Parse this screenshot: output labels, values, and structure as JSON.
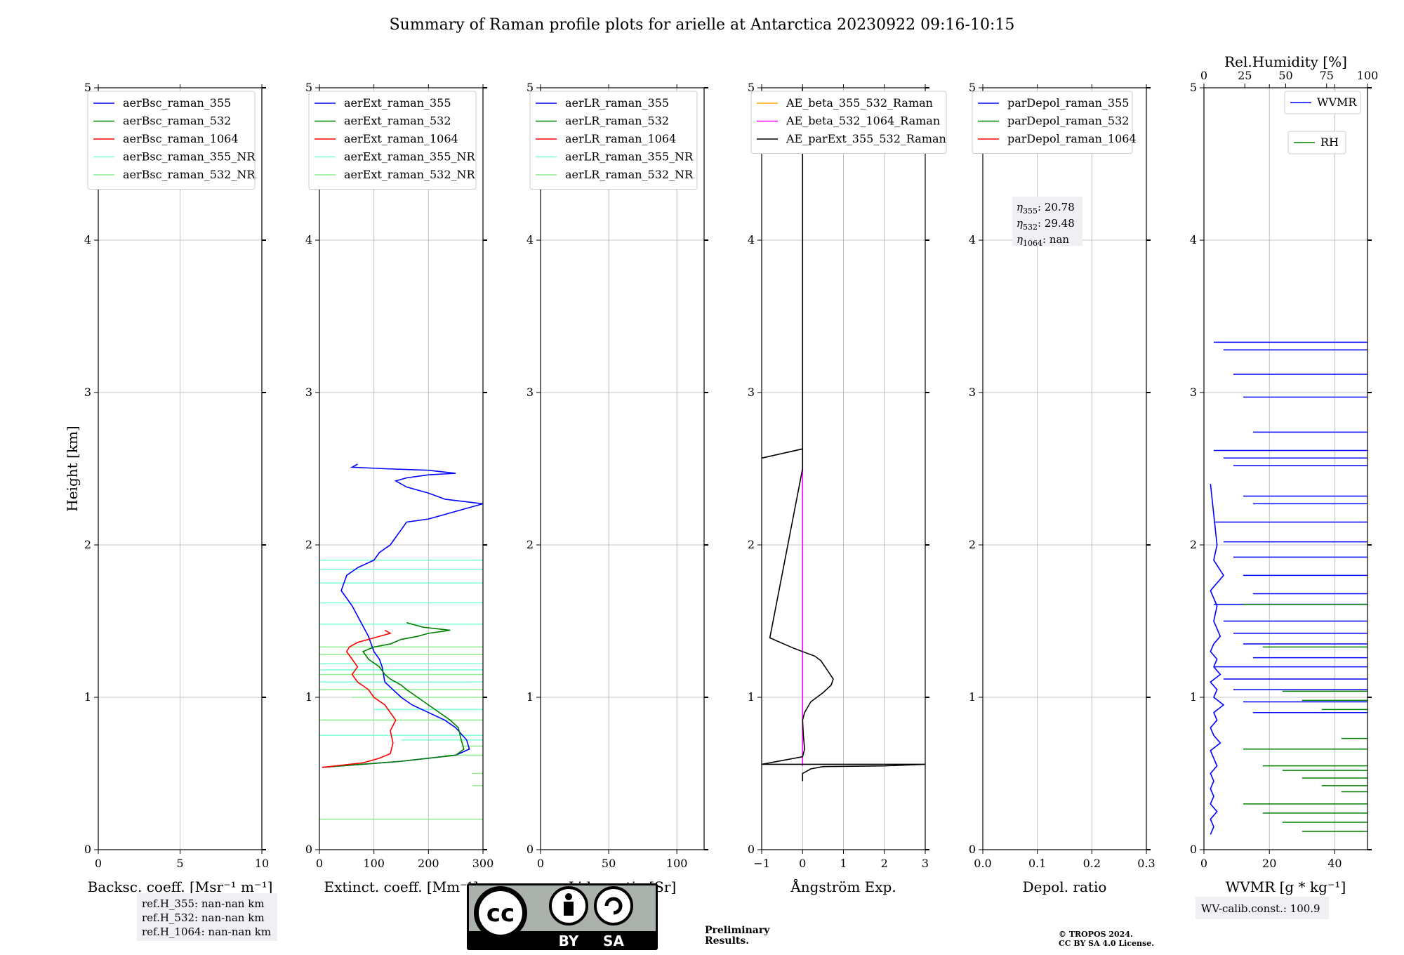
{
  "title": "Summary of Raman profile plots for arielle at Antarctica 20230922 09:16-10:15",
  "chart_data": [
    {
      "type": "line",
      "name": "backscatter",
      "xlabel": "Backsc. coeff. [Msr$^{-1}$ m$^{-1}$]",
      "xlabel_text": "Backsc. coeff. [Msr⁻¹ m⁻¹]",
      "ylabel": "Height [km]",
      "xlim": [
        0,
        10
      ],
      "ylim": [
        0,
        5
      ],
      "xticks": [
        "0",
        "5",
        "10"
      ],
      "yticks": [
        "0",
        "1",
        "2",
        "3",
        "4",
        "5"
      ],
      "legend": [
        {
          "label": "aerBsc_raman_355",
          "color": "#0000ff"
        },
        {
          "label": "aerBsc_raman_532",
          "color": "#008000"
        },
        {
          "label": "aerBsc_raman_1064",
          "color": "#ff0000"
        },
        {
          "label": "aerBsc_raman_355_NR",
          "color": "#7fffd4"
        },
        {
          "label": "aerBsc_raman_532_NR",
          "color": "#90ee90"
        }
      ],
      "series": []
    },
    {
      "type": "line",
      "name": "extinction",
      "xlabel_text": "Extinct. coeff. [Mm⁻¹]",
      "xlim": [
        0,
        300
      ],
      "ylim": [
        0,
        5
      ],
      "xticks": [
        "0",
        "100",
        "200",
        "300"
      ],
      "yticks": [
        "0",
        "1",
        "2",
        "3",
        "4",
        "5"
      ],
      "legend": [
        {
          "label": "aerExt_raman_355",
          "color": "#0000ff"
        },
        {
          "label": "aerExt_raman_532",
          "color": "#008000"
        },
        {
          "label": "aerExt_raman_1064",
          "color": "#ff0000"
        },
        {
          "label": "aerExt_raman_355_NR",
          "color": "#7fffd4"
        },
        {
          "label": "aerExt_raman_532_NR",
          "color": "#90ee90"
        }
      ],
      "series": [
        {
          "name": "aerExt_raman_355",
          "color": "#0000ff",
          "x": [
            5,
            150,
            250,
            275,
            270,
            250,
            230,
            200,
            170,
            150,
            135,
            120,
            115,
            110,
            100,
            90,
            75,
            60,
            40,
            50,
            70,
            100,
            110,
            130,
            140,
            150,
            160,
            200,
            230,
            280,
            300,
            230,
            215,
            200,
            180,
            160,
            150,
            140,
            160,
            200,
            250,
            200,
            120,
            60,
            70
          ],
          "h": [
            0.54,
            0.58,
            0.62,
            0.66,
            0.72,
            0.8,
            0.85,
            0.9,
            0.95,
            1.0,
            1.05,
            1.1,
            1.2,
            1.25,
            1.3,
            1.4,
            1.5,
            1.6,
            1.7,
            1.8,
            1.85,
            1.9,
            1.95,
            2.0,
            2.05,
            2.1,
            2.15,
            2.17,
            2.2,
            2.25,
            2.27,
            2.3,
            2.32,
            2.34,
            2.36,
            2.38,
            2.4,
            2.42,
            2.44,
            2.46,
            2.47,
            2.49,
            2.5,
            2.51,
            2.53
          ]
        },
        {
          "name": "aerExt_raman_532",
          "color": "#008000",
          "x": [
            5,
            150,
            250,
            265,
            260,
            255,
            240,
            220,
            200,
            180,
            160,
            150,
            130,
            120,
            110,
            90,
            80,
            100,
            130,
            150,
            180,
            200,
            240,
            190,
            170,
            160
          ],
          "h": [
            0.54,
            0.58,
            0.62,
            0.66,
            0.72,
            0.8,
            0.85,
            0.9,
            0.95,
            1.0,
            1.05,
            1.08,
            1.12,
            1.15,
            1.2,
            1.25,
            1.3,
            1.33,
            1.35,
            1.38,
            1.4,
            1.42,
            1.44,
            1.46,
            1.48,
            1.49
          ]
        },
        {
          "name": "aerExt_raman_1064",
          "color": "#ff0000",
          "x": [
            5,
            80,
            110,
            130,
            135,
            130,
            140,
            120,
            100,
            90,
            70,
            60,
            70,
            60,
            50,
            55,
            70,
            100,
            130,
            120
          ],
          "h": [
            0.54,
            0.57,
            0.6,
            0.63,
            0.7,
            0.78,
            0.85,
            0.95,
            1.0,
            1.05,
            1.1,
            1.15,
            1.2,
            1.25,
            1.3,
            1.33,
            1.36,
            1.39,
            1.42,
            1.44
          ]
        }
      ]
    },
    {
      "type": "line",
      "name": "lidar_ratio",
      "xlabel_text": "Lidar ratio [Sr]",
      "xlim": [
        0,
        120
      ],
      "ylim": [
        0,
        5
      ],
      "xticks": [
        "0",
        "50",
        "100"
      ],
      "yticks": [
        "0",
        "1",
        "2",
        "3",
        "4",
        "5"
      ],
      "legend": [
        {
          "label": "aerLR_raman_355",
          "color": "#0000ff"
        },
        {
          "label": "aerLR_raman_532",
          "color": "#008000"
        },
        {
          "label": "aerLR_raman_1064",
          "color": "#ff0000"
        },
        {
          "label": "aerLR_raman_355_NR",
          "color": "#7fffd4"
        },
        {
          "label": "aerLR_raman_532_NR",
          "color": "#90ee90"
        }
      ],
      "series": []
    },
    {
      "type": "line",
      "name": "angstrom",
      "xlabel_text": "Ångström Exp.",
      "xlim": [
        -1,
        3
      ],
      "ylim": [
        0,
        5
      ],
      "xticks": [
        "−1",
        "0",
        "1",
        "2",
        "3"
      ],
      "yticks": [
        "0",
        "1",
        "2",
        "3",
        "4",
        "5"
      ],
      "legend": [
        {
          "label": "AE_beta_355_532_Raman",
          "color": "#ffa500"
        },
        {
          "label": "AE_beta_532_1064_Raman",
          "color": "#ff00ff"
        },
        {
          "label": "AE_parExt_355_532_Raman",
          "color": "#000000"
        }
      ],
      "series": [
        {
          "name": "AE_beta_532_1064_Raman",
          "color": "#ff00ff",
          "x": [
            0,
            0
          ],
          "h": [
            0.55,
            2.63
          ]
        },
        {
          "name": "AE_parExt_355_532_Raman",
          "color": "#000000",
          "x": [
            0,
            0,
            0.2,
            0.5,
            2.0,
            3.0,
            -1.0,
            0.0,
            0.05,
            0.02,
            0.0,
            0.05,
            0.2,
            0.5,
            0.7,
            0.75,
            0.6,
            0.45,
            0.3,
            -0.2,
            -0.8,
            0.0,
            0.0,
            -1.0,
            0.0,
            0.0
          ],
          "h": [
            0.45,
            0.5,
            0.53,
            0.545,
            0.55,
            0.56,
            0.56,
            0.61,
            0.66,
            0.75,
            0.85,
            0.9,
            0.97,
            1.03,
            1.08,
            1.12,
            1.18,
            1.24,
            1.27,
            1.32,
            1.39,
            2.5,
            2.63,
            2.57,
            2.63,
            5.0
          ]
        }
      ]
    },
    {
      "type": "line",
      "name": "depolarization",
      "xlabel_text": "Depol. ratio",
      "xlim": [
        0,
        0.3
      ],
      "ylim": [
        0,
        5
      ],
      "xticks": [
        "0.0",
        "0.1",
        "0.2",
        "0.3"
      ],
      "yticks": [
        "0",
        "1",
        "2",
        "3",
        "4",
        "5"
      ],
      "legend": [
        {
          "label": "parDepol_raman_355",
          "color": "#0000ff"
        },
        {
          "label": "parDepol_raman_532",
          "color": "#008000"
        },
        {
          "label": "parDepol_raman_1064",
          "color": "#ff0000"
        }
      ],
      "series": []
    },
    {
      "type": "line",
      "name": "water_vapor",
      "xlabel_text": "WVMR [g * kg⁻¹]",
      "top_xlabel": "Rel.Humidity [%]",
      "xlim": [
        0,
        50
      ],
      "rh_lim": [
        0,
        100
      ],
      "ylim": [
        0,
        5
      ],
      "xticks": [
        "0",
        "20",
        "40"
      ],
      "top_xticks": [
        "0",
        "25",
        "50",
        "75",
        "100"
      ],
      "yticks": [
        "0",
        "1",
        "2",
        "3",
        "4",
        "5"
      ],
      "legend": [
        {
          "label": "WVMR",
          "color": "#0000ff"
        },
        {
          "label": "RH",
          "color": "#008000"
        }
      ],
      "series": [
        {
          "name": "WVMR",
          "color": "#0000ff",
          "x": [
            2,
            3,
            2,
            4,
            2,
            3,
            2,
            3,
            2,
            4,
            3,
            2,
            5,
            3,
            2,
            4,
            3,
            6,
            3,
            4,
            2,
            5,
            3,
            4,
            2,
            3,
            5,
            3,
            4,
            2,
            6,
            3,
            4,
            3,
            2
          ],
          "h": [
            0.1,
            0.15,
            0.2,
            0.25,
            0.3,
            0.35,
            0.4,
            0.45,
            0.5,
            0.55,
            0.6,
            0.65,
            0.7,
            0.75,
            0.8,
            0.85,
            0.9,
            0.95,
            1.0,
            1.05,
            1.1,
            1.15,
            1.2,
            1.25,
            1.3,
            1.35,
            1.4,
            1.5,
            1.6,
            1.7,
            1.8,
            1.9,
            2.0,
            2.2,
            2.4
          ]
        },
        {
          "name": "RH",
          "color": "#008000",
          "x": [
            96,
            92,
            94,
            90,
            96,
            88,
            95,
            92,
            97
          ],
          "h": [
            0.12,
            0.2,
            0.3,
            0.4,
            0.55,
            0.65,
            0.8,
            1.05,
            1.3
          ]
        }
      ]
    }
  ],
  "annotations": {
    "ref_h": [
      "ref.H_355: nan-nan km",
      "ref.H_532: nan-nan km",
      "ref.H_1064: nan-nan km"
    ],
    "eta": [
      {
        "sub": "355",
        "value": ": 20.78"
      },
      {
        "sub": "532",
        "value": ": 29.48"
      },
      {
        "sub": "1064",
        "value": ": nan"
      }
    ],
    "eta_symbol": "η",
    "wv_calib": "WV-calib.const.: 100.9",
    "preliminary": [
      "Preliminary",
      "Results."
    ],
    "copyright": [
      "© TROPOS 2024.",
      "CC BY SA 4.0 License."
    ],
    "license_badge": {
      "cc": "cc",
      "by": "BY",
      "sa": "SA"
    }
  },
  "colors": {
    "blue": "#0000ff",
    "green": "#008000",
    "red": "#ff0000",
    "cyan": "#7fffd4",
    "lightgreen": "#90ee90",
    "magenta": "#ff00ff",
    "orange": "#ffa500",
    "black": "#000000",
    "prelim": "#e8383d"
  }
}
